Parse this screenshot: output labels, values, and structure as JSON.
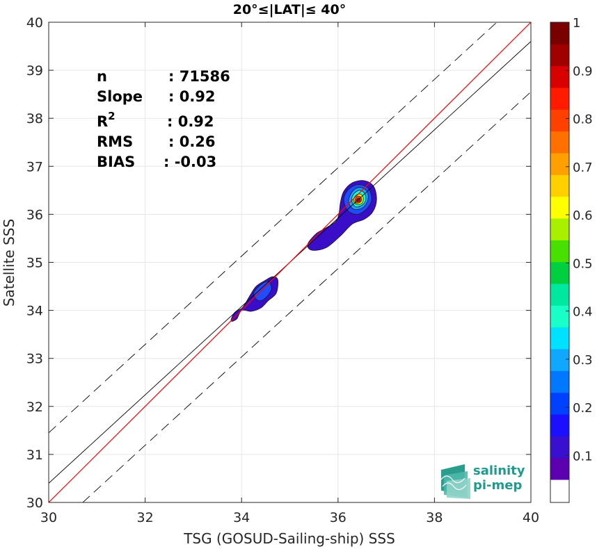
{
  "chart_data": {
    "type": "density-scatter",
    "title": "20°≤|LAT|≤ 40°",
    "xlabel": "TSG (GOSUD-Sailing-ship) SSS",
    "ylabel": "Satellite SSS",
    "xlim": [
      30,
      40
    ],
    "ylim": [
      30,
      40
    ],
    "xticks": [
      "30",
      "32",
      "34",
      "36",
      "38",
      "40"
    ],
    "yticks": [
      "30",
      "31",
      "32",
      "33",
      "34",
      "35",
      "36",
      "37",
      "38",
      "39",
      "40"
    ],
    "grid": true,
    "stats": [
      {
        "label": "n",
        "value": ": 71586"
      },
      {
        "label": "Slope",
        "value": ": 0.92"
      },
      {
        "label": "R",
        "sup": "2",
        "value": ": 0.92"
      },
      {
        "label": "RMS",
        "value": ": 0.26"
      },
      {
        "label": "BIAS",
        "value": ": -0.03"
      }
    ],
    "lines": {
      "one_to_one": {
        "color": "#ff0000",
        "x": [
          30,
          40
        ],
        "y": [
          30,
          40
        ]
      },
      "fit": {
        "color": "#000000",
        "x": [
          30,
          40
        ],
        "y": [
          30.4,
          39.6
        ]
      },
      "bounds": {
        "color": "#000000",
        "dash": true,
        "offset": 1.05
      }
    },
    "contours": [
      {
        "level": 0.05,
        "color": "#3a0ec8",
        "points": [
          [
            33.78,
            33.78
          ],
          [
            33.86,
            33.96
          ],
          [
            34.02,
            34.06
          ],
          [
            34.18,
            34.32
          ],
          [
            34.3,
            34.5
          ],
          [
            34.48,
            34.62
          ],
          [
            34.64,
            34.7
          ],
          [
            34.75,
            34.64
          ],
          [
            34.72,
            34.36
          ],
          [
            34.55,
            34.2
          ],
          [
            34.4,
            34.05
          ],
          [
            34.2,
            33.98
          ],
          [
            34.0,
            34.0
          ],
          [
            33.9,
            33.82
          ]
        ]
      },
      {
        "level": 0.05,
        "color": "#3a0ec8",
        "points": [
          [
            35.38,
            35.4
          ],
          [
            35.55,
            35.6
          ],
          [
            35.72,
            35.7
          ],
          [
            35.95,
            35.85
          ],
          [
            36.02,
            36.02
          ],
          [
            36.05,
            36.25
          ],
          [
            36.12,
            36.48
          ],
          [
            36.3,
            36.66
          ],
          [
            36.55,
            36.7
          ],
          [
            36.74,
            36.58
          ],
          [
            36.8,
            36.3
          ],
          [
            36.72,
            36.05
          ],
          [
            36.55,
            35.9
          ],
          [
            36.3,
            35.8
          ],
          [
            36.05,
            35.55
          ],
          [
            35.78,
            35.32
          ],
          [
            35.55,
            35.25
          ],
          [
            35.4,
            35.28
          ]
        ]
      },
      {
        "level": 0.25,
        "color": "#1e4cff",
        "points": [
          [
            34.25,
            34.35
          ],
          [
            34.38,
            34.52
          ],
          [
            34.55,
            34.6
          ],
          [
            34.62,
            34.45
          ],
          [
            34.5,
            34.26
          ],
          [
            34.35,
            34.2
          ]
        ]
      },
      {
        "level": 0.25,
        "color": "#1e4cff",
        "points": [
          [
            36.12,
            36.3
          ],
          [
            36.2,
            36.5
          ],
          [
            36.4,
            36.62
          ],
          [
            36.62,
            36.55
          ],
          [
            36.7,
            36.32
          ],
          [
            36.6,
            36.12
          ],
          [
            36.4,
            36.0
          ],
          [
            36.2,
            36.08
          ]
        ]
      },
      {
        "level": 0.3,
        "color": "#1e9cff",
        "points": [
          [
            36.22,
            36.3
          ],
          [
            36.3,
            36.48
          ],
          [
            36.45,
            36.56
          ],
          [
            36.6,
            36.48
          ],
          [
            36.62,
            36.3
          ],
          [
            36.52,
            36.14
          ],
          [
            36.35,
            36.1
          ],
          [
            36.25,
            36.18
          ]
        ]
      },
      {
        "level": 0.4,
        "color": "#12ffd8",
        "points": [
          [
            36.28,
            36.3
          ],
          [
            36.34,
            36.44
          ],
          [
            36.46,
            36.5
          ],
          [
            36.56,
            36.42
          ],
          [
            36.57,
            36.28
          ],
          [
            36.48,
            36.18
          ],
          [
            36.36,
            36.16
          ]
        ]
      },
      {
        "level": 0.6,
        "color": "#ffff00",
        "points": [
          [
            36.32,
            36.3
          ],
          [
            36.38,
            36.4
          ],
          [
            36.46,
            36.42
          ],
          [
            36.52,
            36.36
          ],
          [
            36.51,
            36.25
          ],
          [
            36.43,
            36.2
          ],
          [
            36.36,
            36.22
          ]
        ]
      },
      {
        "level": 0.8,
        "color": "#ff5a00",
        "points": [
          [
            36.35,
            36.3
          ],
          [
            36.4,
            36.37
          ],
          [
            36.46,
            36.37
          ],
          [
            36.49,
            36.31
          ],
          [
            36.46,
            36.25
          ],
          [
            36.4,
            36.23
          ],
          [
            36.36,
            36.25
          ]
        ]
      },
      {
        "level": 0.9,
        "color": "#e00000",
        "points": [
          [
            36.38,
            36.3
          ],
          [
            36.42,
            36.34
          ],
          [
            36.46,
            36.32
          ],
          [
            36.46,
            36.28
          ],
          [
            36.42,
            36.26
          ],
          [
            36.39,
            36.27
          ]
        ]
      }
    ],
    "colorbar": {
      "range": [
        0,
        1
      ],
      "ticks": [
        "0.1",
        "0.2",
        "0.3",
        "0.4",
        "0.5",
        "0.6",
        "0.7",
        "0.8",
        "0.9",
        "1"
      ],
      "colors": [
        "#ffffff",
        "#5a00b0",
        "#3a10d0",
        "#1a10ff",
        "#0040ff",
        "#0078ff",
        "#10a8ff",
        "#00e0ff",
        "#18ffc8",
        "#00e8a0",
        "#00d040",
        "#48e000",
        "#a8f000",
        "#ffff00",
        "#ffd000",
        "#ffa000",
        "#ff7000",
        "#ff4000",
        "#ff1a00",
        "#d80000",
        "#a00000",
        "#7a0000"
      ]
    }
  },
  "logo": {
    "line1": "salinity",
    "line2": "pi-mep"
  }
}
